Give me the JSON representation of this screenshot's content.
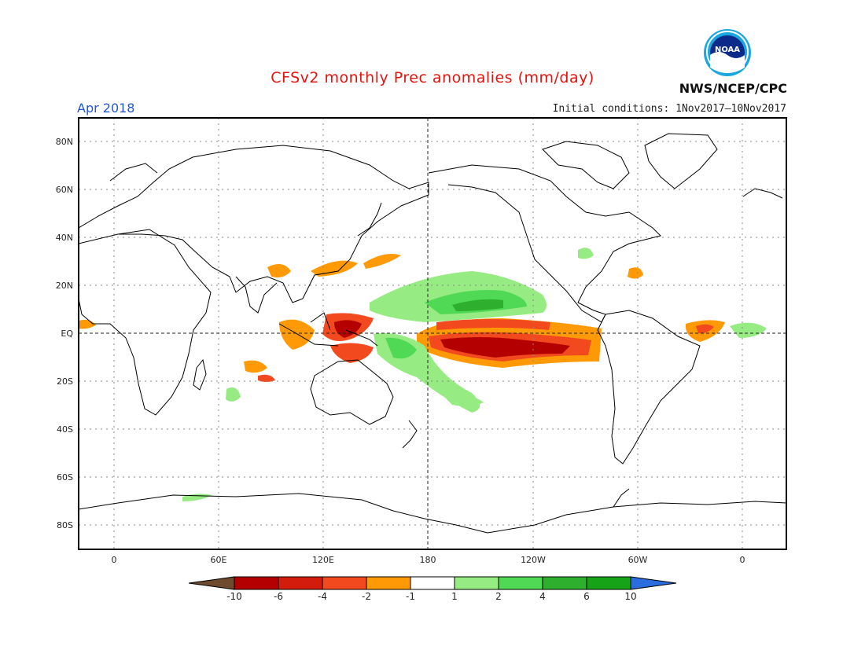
{
  "header": {
    "title": "CFSv2 monthly Prec anomalies (mm/day)",
    "valid_month": "Apr 2018",
    "initial_conditions": "Initial conditions: 1Nov2017–10Nov2017",
    "agency": "NWS/NCEP/CPC",
    "logo_text": "NOAA"
  },
  "map": {
    "lat_labels": [
      "80N",
      "60N",
      "40N",
      "20N",
      "EQ",
      "20S",
      "40S",
      "60S",
      "80S"
    ],
    "lon_labels": [
      "0",
      "60E",
      "120E",
      "180",
      "120W",
      "60W",
      "0"
    ]
  },
  "colorbar": {
    "labels": [
      "-10",
      "-6",
      "-4",
      "-2",
      "-1",
      "1",
      "2",
      "4",
      "6",
      "10"
    ],
    "colors": [
      "#6e4a2e",
      "#b40000",
      "#d41c0c",
      "#f2491e",
      "#ff9a06",
      "#ffffff",
      "#96eb82",
      "#50d954",
      "#2eb02e",
      "#17a317",
      "#2a6dde"
    ]
  }
}
